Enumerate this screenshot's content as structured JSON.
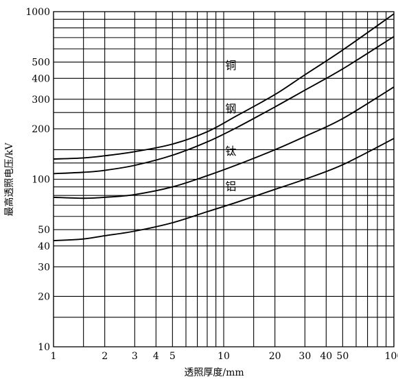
{
  "chart_data": {
    "type": "line",
    "xscale": "log",
    "yscale": "log",
    "xlim": [
      1,
      100
    ],
    "ylim": [
      10,
      1000
    ],
    "xlabel": "透照厚度/mm",
    "ylabel": "最高透照电压/kV",
    "grid": true,
    "xticks": [
      {
        "v": 1,
        "label": "1"
      },
      {
        "v": 2,
        "label": "2"
      },
      {
        "v": 3,
        "label": "3"
      },
      {
        "v": 4,
        "label": "4"
      },
      {
        "v": 5,
        "label": "5"
      },
      {
        "v": 10,
        "label": "10"
      },
      {
        "v": 20,
        "label": "20"
      },
      {
        "v": 30,
        "label": "30"
      },
      {
        "v": 40,
        "label": "40"
      },
      {
        "v": 50,
        "label": "50"
      },
      {
        "v": 100,
        "label": "100"
      }
    ],
    "yticks": [
      {
        "v": 10,
        "label": "10"
      },
      {
        "v": 20,
        "label": "20"
      },
      {
        "v": 30,
        "label": "30"
      },
      {
        "v": 40,
        "label": "40"
      },
      {
        "v": 50,
        "label": "50"
      },
      {
        "v": 100,
        "label": "100"
      },
      {
        "v": 200,
        "label": "200"
      },
      {
        "v": 300,
        "label": "300"
      },
      {
        "v": 400,
        "label": "400"
      },
      {
        "v": 500,
        "label": "500"
      },
      {
        "v": 1000,
        "label": "1000"
      }
    ],
    "xgrid": [
      1,
      1.5,
      2,
      3,
      4,
      5,
      6,
      7,
      8,
      9,
      10,
      15,
      20,
      30,
      40,
      50,
      60,
      70,
      80,
      90,
      100
    ],
    "ygrid": [
      10,
      15,
      20,
      30,
      40,
      50,
      60,
      70,
      80,
      90,
      100,
      125,
      150,
      200,
      250,
      300,
      400,
      500,
      600,
      700,
      800,
      900,
      1000
    ],
    "series": [
      {
        "name": "铜",
        "label_at": [
          7.6,
          480
        ],
        "points": [
          [
            1,
            132
          ],
          [
            1.5,
            134
          ],
          [
            2,
            138
          ],
          [
            3,
            146
          ],
          [
            5,
            162
          ],
          [
            8,
            192
          ],
          [
            12,
            240
          ],
          [
            20,
            320
          ],
          [
            30,
            420
          ],
          [
            50,
            590
          ],
          [
            100,
            970
          ]
        ]
      },
      {
        "name": "钢",
        "label_at": [
          7.6,
          265
        ],
        "points": [
          [
            1,
            108
          ],
          [
            1.5,
            110
          ],
          [
            2,
            113
          ],
          [
            3,
            121
          ],
          [
            5,
            139
          ],
          [
            8,
            167
          ],
          [
            12,
            204
          ],
          [
            20,
            270
          ],
          [
            30,
            340
          ],
          [
            50,
            455
          ],
          [
            100,
            710
          ]
        ]
      },
      {
        "name": "钛",
        "label_at": [
          7.6,
          148
        ],
        "points": [
          [
            1,
            78
          ],
          [
            1.5,
            77
          ],
          [
            2,
            78
          ],
          [
            3,
            81
          ],
          [
            5,
            90
          ],
          [
            8,
            105
          ],
          [
            12,
            122
          ],
          [
            20,
            150
          ],
          [
            30,
            180
          ],
          [
            50,
            230
          ],
          [
            100,
            355
          ]
        ]
      },
      {
        "name": "铝",
        "label_at": [
          7.6,
          91
        ],
        "points": [
          [
            1,
            43
          ],
          [
            1.5,
            44
          ],
          [
            2,
            46
          ],
          [
            3,
            49
          ],
          [
            5,
            55
          ],
          [
            8,
            64
          ],
          [
            12,
            73
          ],
          [
            20,
            87
          ],
          [
            30,
            100
          ],
          [
            50,
            122
          ],
          [
            100,
            175
          ]
        ]
      }
    ]
  }
}
